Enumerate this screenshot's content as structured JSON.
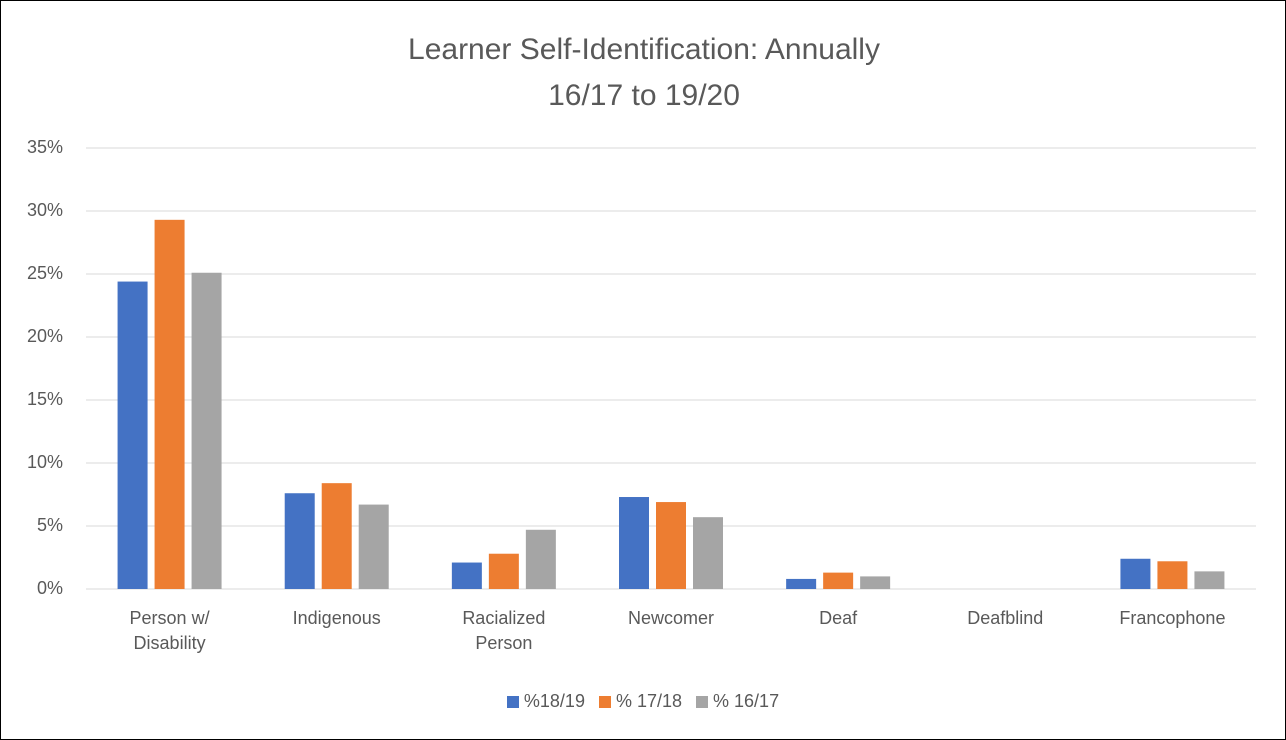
{
  "chart_data": {
    "type": "bar",
    "title": [
      "Learner Self-Identification: Annually",
      "16/17 to 19/20"
    ],
    "categories": [
      "Person w/ Disability",
      "Indigenous",
      "Racialized Person",
      "Newcomer",
      "Deaf",
      "Deafblind",
      "Francophone"
    ],
    "series": [
      {
        "name": "%18/19",
        "color": "#4472c4",
        "values": [
          24.4,
          7.6,
          2.1,
          7.3,
          0.8,
          0,
          2.4
        ]
      },
      {
        "name": "% 17/18",
        "color": "#ed7d31",
        "values": [
          29.3,
          8.4,
          2.8,
          6.9,
          1.3,
          0,
          2.2
        ]
      },
      {
        "name": "% 16/17",
        "color": "#a5a5a5",
        "values": [
          25.1,
          6.7,
          4.7,
          5.7,
          1.0,
          0,
          1.4
        ]
      }
    ],
    "ylim": [
      0,
      35
    ],
    "yticks": [
      {
        "value": 0,
        "label": "0%"
      },
      {
        "value": 5,
        "label": "5%"
      },
      {
        "value": 10,
        "label": "10%"
      },
      {
        "value": 15,
        "label": "15%"
      },
      {
        "value": 20,
        "label": "20%"
      },
      {
        "value": 25,
        "label": "25%"
      },
      {
        "value": 30,
        "label": "30%"
      },
      {
        "value": 35,
        "label": "35%"
      }
    ],
    "grid": true,
    "legend": "bottom"
  }
}
